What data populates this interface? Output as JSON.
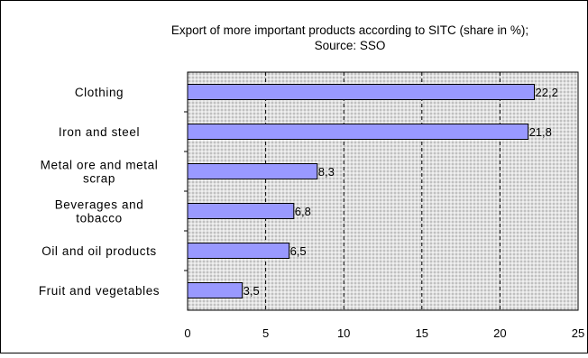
{
  "chart_data": {
    "type": "bar",
    "orientation": "horizontal",
    "title": "Export of more important products according to SITC  (share in %);",
    "subtitle": "Source: SSO",
    "categories": [
      "Clothing",
      "Iron and steel",
      "Metal ore and metal scrap",
      "Beverages and tobacco",
      "Oil and oil products",
      "Fruit and vegetables"
    ],
    "category_lines": [
      [
        "Clothing"
      ],
      [
        "Iron and steel"
      ],
      [
        "Metal ore and metal",
        "scrap"
      ],
      [
        "Beverages and",
        "tobacco"
      ],
      [
        "Oil and oil products"
      ],
      [
        "Fruit and vegetables"
      ]
    ],
    "values": [
      22.2,
      21.8,
      8.3,
      6.8,
      6.5,
      3.5
    ],
    "value_labels": [
      "22,2",
      "21,8",
      "8,3",
      "6,8",
      "6,5",
      "3,5"
    ],
    "xlim": [
      0,
      25
    ],
    "x_ticks": [
      0,
      5,
      10,
      15,
      20,
      25
    ],
    "x_tick_labels": [
      "0",
      "5",
      "10",
      "15",
      "20",
      "25"
    ],
    "grid": true,
    "colors": {
      "bar_fill": "#9999ff",
      "bar_stroke": "#000000",
      "plot_bg": "#c0c0c0",
      "grid_minor": "#ffffff",
      "grid_major": "#000000"
    }
  }
}
